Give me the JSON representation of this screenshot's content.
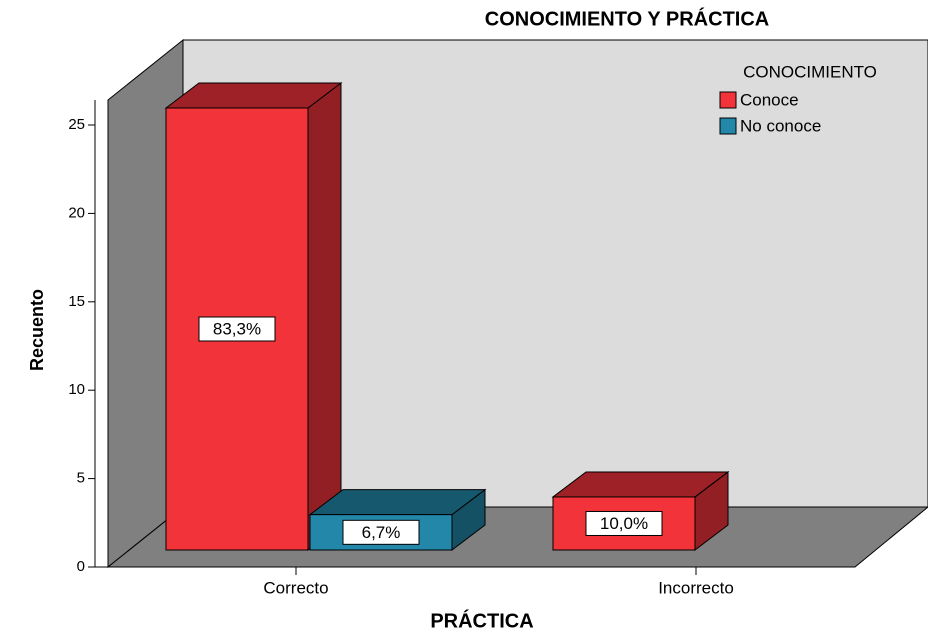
{
  "chart_data": {
    "type": "bar3d",
    "title": "CONOCIMIENTO Y PRÁCTICA",
    "x_label": "PRÁCTICA",
    "y_label": "Recuento",
    "legend_title": "CONOCIMIENTO",
    "categories": [
      "Correcto",
      "Incorrecto"
    ],
    "series": [
      {
        "name": "Conoce",
        "color": "#f2333a",
        "values": [
          25,
          3
        ],
        "labels": [
          "83,3%",
          "10,0%"
        ]
      },
      {
        "name": "No conoce",
        "color": "#2287a8",
        "values": [
          2,
          0
        ],
        "labels": [
          "6,7%",
          null
        ]
      }
    ],
    "ylim": [
      0,
      25
    ],
    "yticks": [
      0,
      5,
      10,
      15,
      20,
      25
    ],
    "legend": "top-right"
  }
}
